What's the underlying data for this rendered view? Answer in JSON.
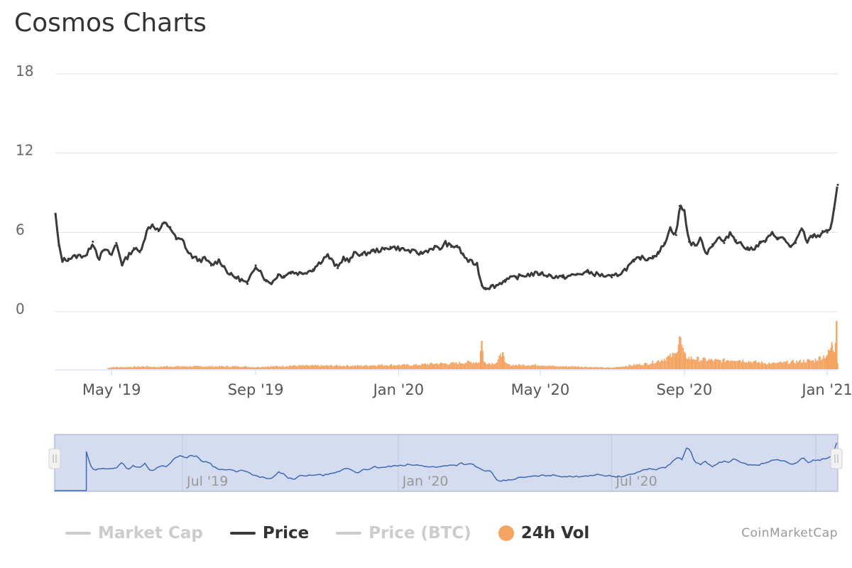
{
  "title": "Cosmos Charts",
  "credit": "CoinMarketCap",
  "colors": {
    "price": "#3a3a3c",
    "volume": "#f4a460",
    "navigator_line": "#3f6ab5",
    "navigator_mask": "#d6dcef",
    "grid": "#e0e0e0",
    "legend_off": "#cccccc"
  },
  "legend": [
    {
      "label": "Market Cap",
      "active": false,
      "symbol": "line"
    },
    {
      "label": "Price",
      "active": true,
      "symbol": "line"
    },
    {
      "label": "Price (BTC)",
      "active": false,
      "symbol": "line"
    },
    {
      "label": "24h Vol",
      "active": true,
      "symbol": "dot"
    }
  ],
  "chart_data": {
    "type": "line",
    "title": "Cosmos Charts",
    "xlabel": "",
    "ylabel": "",
    "ylim": [
      0,
      18
    ],
    "y_ticks": [
      0,
      6,
      12,
      18
    ],
    "x_ticks": [
      "May '19",
      "Sep '19",
      "Jan '20",
      "May '20",
      "Sep '20",
      "Jan '21"
    ],
    "x_tick_dates": [
      "2019-05-01",
      "2019-09-01",
      "2020-01-01",
      "2020-05-01",
      "2020-09-01",
      "2021-01-01"
    ],
    "x_range": [
      "2019-03-14",
      "2021-01-10"
    ],
    "grid": true,
    "legend_position": "bottom",
    "series": [
      {
        "name": "Price",
        "x": [
          "2019-03-14",
          "2019-03-17",
          "2019-03-20",
          "2019-03-25",
          "2019-04-01",
          "2019-04-10",
          "2019-04-15",
          "2019-04-20",
          "2019-04-25",
          "2019-05-01",
          "2019-05-05",
          "2019-05-10",
          "2019-05-15",
          "2019-05-20",
          "2019-05-25",
          "2019-06-01",
          "2019-06-05",
          "2019-06-10",
          "2019-06-15",
          "2019-06-20",
          "2019-06-25",
          "2019-07-01",
          "2019-07-05",
          "2019-07-10",
          "2019-07-15",
          "2019-07-20",
          "2019-07-25",
          "2019-08-01",
          "2019-08-05",
          "2019-08-10",
          "2019-08-15",
          "2019-08-20",
          "2019-08-25",
          "2019-09-01",
          "2019-09-05",
          "2019-09-10",
          "2019-09-15",
          "2019-09-20",
          "2019-09-25",
          "2019-10-01",
          "2019-10-10",
          "2019-10-20",
          "2019-11-01",
          "2019-11-10",
          "2019-11-15",
          "2019-11-20",
          "2019-11-25",
          "2019-12-01",
          "2019-12-10",
          "2019-12-20",
          "2019-12-25",
          "2020-01-01",
          "2020-01-10",
          "2020-01-20",
          "2020-02-01",
          "2020-02-05",
          "2020-02-10",
          "2020-02-15",
          "2020-02-20",
          "2020-02-25",
          "2020-03-01",
          "2020-03-08",
          "2020-03-12",
          "2020-03-15",
          "2020-03-20",
          "2020-03-25",
          "2020-04-01",
          "2020-04-10",
          "2020-04-20",
          "2020-05-01",
          "2020-05-10",
          "2020-05-20",
          "2020-06-01",
          "2020-06-10",
          "2020-06-20",
          "2020-07-01",
          "2020-07-10",
          "2020-07-20",
          "2020-07-25",
          "2020-08-01",
          "2020-08-05",
          "2020-08-10",
          "2020-08-15",
          "2020-08-20",
          "2020-08-25",
          "2020-08-28",
          "2020-09-01",
          "2020-09-05",
          "2020-09-10",
          "2020-09-15",
          "2020-09-20",
          "2020-09-25",
          "2020-10-01",
          "2020-10-05",
          "2020-10-10",
          "2020-10-15",
          "2020-10-20",
          "2020-10-25",
          "2020-11-01",
          "2020-11-05",
          "2020-11-10",
          "2020-11-15",
          "2020-11-20",
          "2020-11-25",
          "2020-12-01",
          "2020-12-05",
          "2020-12-10",
          "2020-12-15",
          "2020-12-20",
          "2020-12-25",
          "2020-12-28",
          "2021-01-01",
          "2021-01-04",
          "2021-01-07",
          "2021-01-10"
        ],
        "values": [
          7.4,
          5.0,
          3.9,
          4.0,
          4.2,
          4.3,
          5.3,
          4.0,
          4.7,
          4.3,
          5.2,
          3.6,
          4.2,
          4.8,
          4.5,
          6.3,
          6.6,
          6.1,
          6.7,
          6.4,
          5.5,
          5.4,
          4.5,
          4.1,
          3.9,
          4.0,
          3.5,
          3.9,
          3.4,
          2.8,
          2.6,
          2.4,
          2.1,
          3.5,
          3.1,
          2.3,
          2.2,
          2.8,
          2.7,
          3.0,
          2.9,
          3.2,
          4.3,
          3.3,
          4.1,
          3.8,
          4.5,
          4.3,
          4.6,
          4.7,
          4.9,
          4.8,
          4.6,
          4.4,
          4.9,
          4.7,
          5.2,
          4.9,
          5.0,
          4.3,
          3.8,
          3.6,
          2.0,
          1.8,
          1.9,
          2.0,
          2.4,
          2.6,
          2.8,
          2.9,
          2.7,
          2.6,
          2.8,
          3.0,
          2.8,
          2.6,
          3.0,
          3.8,
          4.1,
          4.0,
          4.2,
          4.4,
          5.2,
          6.3,
          5.8,
          8.0,
          7.6,
          5.3,
          5.0,
          5.5,
          4.4,
          5.1,
          5.6,
          5.2,
          6.0,
          5.4,
          5.1,
          4.7,
          4.9,
          5.2,
          5.4,
          5.9,
          5.6,
          5.5,
          4.9,
          5.2,
          6.3,
          5.3,
          5.8,
          5.7,
          6.1,
          6.0,
          6.4,
          7.8,
          9.6
        ]
      },
      {
        "name": "24h Vol",
        "x": [
          "2019-03-14",
          "2019-04-20",
          "2019-04-25",
          "2019-05-01",
          "2019-05-10",
          "2019-06-01",
          "2019-06-10",
          "2019-06-15",
          "2019-07-01",
          "2019-07-10",
          "2019-07-20",
          "2019-08-01",
          "2019-08-10",
          "2019-08-20",
          "2019-09-01",
          "2019-09-10",
          "2019-09-20",
          "2019-10-01",
          "2019-10-15",
          "2019-11-01",
          "2019-11-15",
          "2019-12-01",
          "2019-12-15",
          "2020-01-01",
          "2020-01-15",
          "2020-02-01",
          "2020-02-15",
          "2020-03-01",
          "2020-03-10",
          "2020-03-12",
          "2020-03-14",
          "2020-03-20",
          "2020-03-25",
          "2020-03-30",
          "2020-04-01",
          "2020-04-05",
          "2020-04-15",
          "2020-05-01",
          "2020-05-15",
          "2020-06-01",
          "2020-06-15",
          "2020-07-01",
          "2020-07-10",
          "2020-07-20",
          "2020-08-01",
          "2020-08-10",
          "2020-08-20",
          "2020-08-25",
          "2020-08-28",
          "2020-09-01",
          "2020-09-05",
          "2020-09-15",
          "2020-10-01",
          "2020-10-15",
          "2020-11-01",
          "2020-11-15",
          "2020-12-01",
          "2020-12-15",
          "2020-12-20",
          "2020-12-28",
          "2021-01-01",
          "2021-01-03",
          "2021-01-05",
          "2021-01-07",
          "2021-01-09",
          "2021-01-10"
        ],
        "values": [
          0,
          0,
          0,
          0.15,
          0.15,
          0.2,
          0.15,
          0.2,
          0.2,
          0.2,
          0.2,
          0.2,
          0.2,
          0.2,
          0.15,
          0.2,
          0.2,
          0.25,
          0.25,
          0.25,
          0.25,
          0.25,
          0.3,
          0.3,
          0.3,
          0.4,
          0.4,
          0.5,
          0.5,
          2.0,
          0.5,
          0.4,
          0.5,
          1.2,
          0.4,
          0.3,
          0.3,
          0.3,
          0.2,
          0.2,
          0.15,
          0.1,
          0.2,
          0.3,
          0.4,
          0.6,
          0.9,
          1.1,
          2.3,
          1.0,
          0.8,
          0.7,
          0.6,
          0.7,
          0.5,
          0.4,
          0.5,
          0.6,
          0.6,
          0.9,
          1.0,
          1.3,
          1.7,
          1.2,
          3.4,
          0.5
        ]
      }
    ],
    "navigator": {
      "x_ticks": [
        "Jul '19",
        "Jan '20",
        "Jul '20"
      ],
      "x_tick_dates": [
        "2019-07-01",
        "2020-01-01",
        "2020-07-01"
      ],
      "x_range": [
        "2019-03-14",
        "2021-01-10"
      ]
    }
  }
}
